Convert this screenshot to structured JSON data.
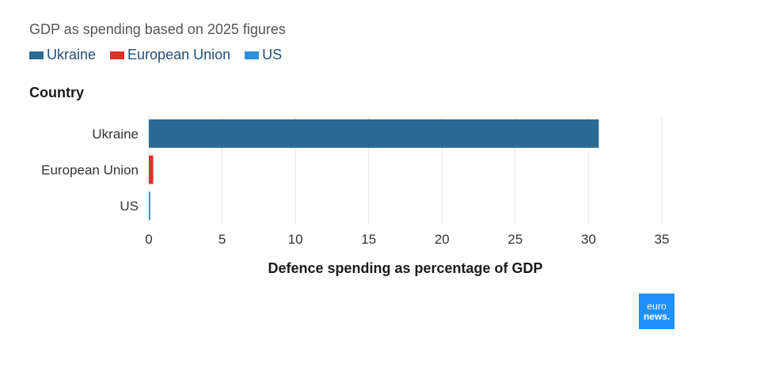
{
  "subtitle": "GDP as spending based on 2025 figures",
  "legend": [
    {
      "label": "Ukraine",
      "color": "#2a6a94"
    },
    {
      "label": "European Union",
      "color": "#e0302a"
    },
    {
      "label": "US",
      "color": "#2f8fdf"
    }
  ],
  "logo": {
    "line1": "euro",
    "line2": "news."
  },
  "chart_data": {
    "type": "bar",
    "orientation": "horizontal",
    "ylabel": "Country",
    "xlabel": "Defence spending as percentage of GDP",
    "categories": [
      "Ukraine",
      "European Union",
      "US"
    ],
    "values": [
      30.7,
      0.3,
      0.1
    ],
    "colors": [
      "#2a6a94",
      "#e0302a",
      "#2f8fdf"
    ],
    "xlim": [
      0,
      35
    ],
    "xticks": [
      0,
      5,
      10,
      15,
      20,
      25,
      30,
      35
    ],
    "grid": true,
    "legend_position": "top-left"
  }
}
